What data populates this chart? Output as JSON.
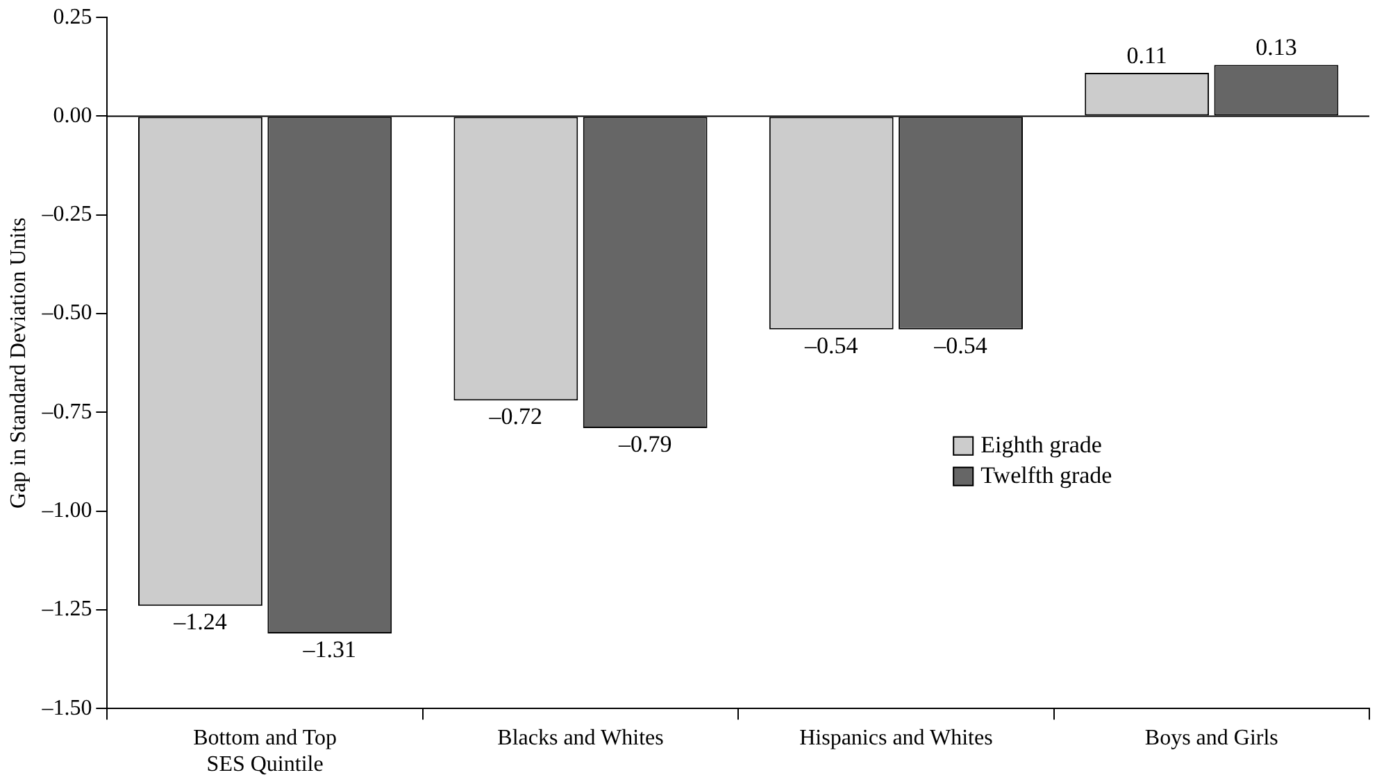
{
  "chart_data": {
    "type": "bar",
    "ylabel": "Gap in Standard Deviation Units",
    "categories": [
      "Bottom and Top\nSES Quintile",
      "Blacks and Whites",
      "Hispanics and Whites",
      "Boys and Girls"
    ],
    "series": [
      {
        "name": "Eighth grade",
        "color": "#cccccc",
        "values": [
          -1.24,
          -0.72,
          -0.54,
          0.11
        ],
        "value_labels": [
          "–1.24",
          "–0.72",
          "–0.54",
          "0.11"
        ]
      },
      {
        "name": "Twelfth grade",
        "color": "#666666",
        "values": [
          -1.31,
          -0.79,
          -0.54,
          0.13
        ],
        "value_labels": [
          "–1.31",
          "–0.79",
          "–0.54",
          "0.13"
        ]
      }
    ],
    "ylim": [
      -1.5,
      0.25
    ],
    "yticks": [
      {
        "value": 0.25,
        "label": "0.25"
      },
      {
        "value": 0,
        "label": "0.00"
      },
      {
        "value": -0.25,
        "label": "–0.25"
      },
      {
        "value": -0.5,
        "label": "–0.50"
      },
      {
        "value": -0.75,
        "label": "–0.75"
      },
      {
        "value": -1,
        "label": "–1.00"
      },
      {
        "value": -1.25,
        "label": "–1.25"
      },
      {
        "value": -1.5,
        "label": "–1.50"
      }
    ],
    "ref_lines": [
      {
        "axis": "y",
        "value": 0,
        "color": "#000000"
      }
    ],
    "grid": false,
    "legend": "center right"
  }
}
